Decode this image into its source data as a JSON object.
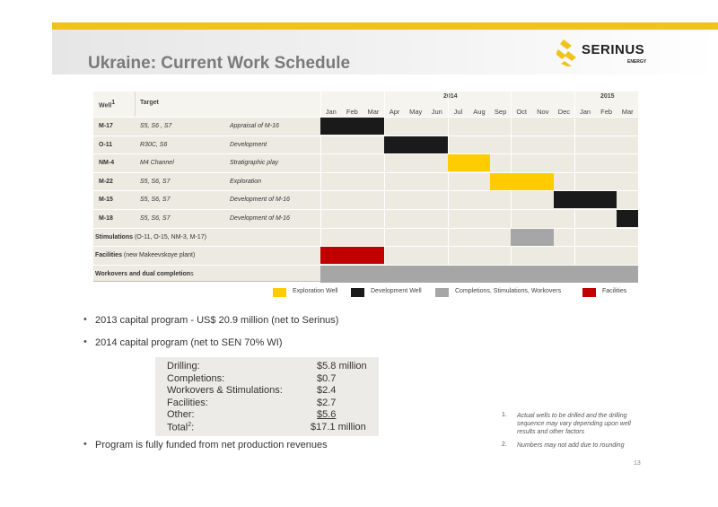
{
  "header": {
    "title": "Ukraine: Current Work Schedule",
    "logo_text": "SERINUS",
    "logo_sub": "ENERGY"
  },
  "colors": {
    "exploration": "#ffcc00",
    "development": "#1a1a1a",
    "completions": "#a6a6a6",
    "facilities": "#c00000",
    "accent": "#f1c21b"
  },
  "schedule": {
    "col_well": "Well",
    "col_well_sup": "1",
    "col_target": "Target",
    "years": [
      "2014",
      "2015"
    ],
    "months": [
      "Jan",
      "Feb",
      "Mar",
      "Apr",
      "May",
      "Jun",
      "Jul",
      "Aug",
      "Sep",
      "Oct",
      "Nov",
      "Dec",
      "Jan",
      "Feb",
      "Mar"
    ],
    "rows": [
      {
        "well": "M-17",
        "target": "S5, S6 , S7",
        "desc": "Appraisal of M-16",
        "start": 0,
        "span": 3,
        "type": "development"
      },
      {
        "well": "O-11",
        "target": "R30C, S6",
        "desc": "Development",
        "start": 3,
        "span": 3,
        "type": "development"
      },
      {
        "well": "NM-4",
        "target": "M4 Channel",
        "desc": "Stratigraphic play",
        "start": 6,
        "span": 2,
        "type": "exploration"
      },
      {
        "well": "M-22",
        "target": "S5, S6, S7",
        "desc": "Exploration",
        "start": 8,
        "span": 3,
        "type": "exploration"
      },
      {
        "well": "M-15",
        "target": "S5, S6, S7",
        "desc": "Development  of M-16",
        "start": 11,
        "span": 3,
        "type": "development"
      },
      {
        "well": "M-18",
        "target": "S5, S6, S7",
        "desc": "Development of M-16",
        "start": 14,
        "span": 1,
        "type": "development"
      }
    ],
    "stimulations_bold": "Stimulations",
    "stimulations_rest": " (O-11, O-15, NM-3, M-17)",
    "stimulations_bar": {
      "start": 9,
      "span": 2,
      "type": "completions"
    },
    "facilities_bold": "Facilities",
    "facilities_rest": "   (new Makeevskoye plant)",
    "facilities_bar": {
      "start": 0,
      "span": 3,
      "type": "facilities"
    },
    "workovers_bold": "Workovers and dual completion",
    "workovers_rest": "s",
    "workovers_bar": {
      "start": 0,
      "span": 15,
      "type": "completions"
    }
  },
  "legend": [
    {
      "label": "Exploration Well",
      "type": "exploration"
    },
    {
      "label": "Development Well",
      "type": "development"
    },
    {
      "label": "Completions, Stimulations, Workovers",
      "type": "completions"
    },
    {
      "label": "Facilities",
      "type": "facilities"
    }
  ],
  "bullets": [
    "2013 capital program - US$ 20.9 million (net to Serinus)",
    "2014 capital program (net to SEN 70% WI)",
    "Program is fully funded from net production revenues"
  ],
  "capex": [
    {
      "label": "Drilling:",
      "value": "$5.8 million"
    },
    {
      "label": "Completions:",
      "value": "$0.7"
    },
    {
      "label": "Workovers & Stimulations:",
      "value": "$2.4"
    },
    {
      "label": "Facilities:",
      "value": "$2.7"
    },
    {
      "label": "Other:",
      "value": "$5.6"
    },
    {
      "label": "Total",
      "label_sup": "2",
      "label_end": ":",
      "value": "$17.1 million"
    }
  ],
  "footnotes": [
    {
      "num": "1.",
      "text": "Actual wells to be drilled and the drilling sequence may vary depending upon well results and other factors"
    },
    {
      "num": "2.",
      "text": "Numbers may not add due to rounding"
    }
  ],
  "page_number": "13"
}
